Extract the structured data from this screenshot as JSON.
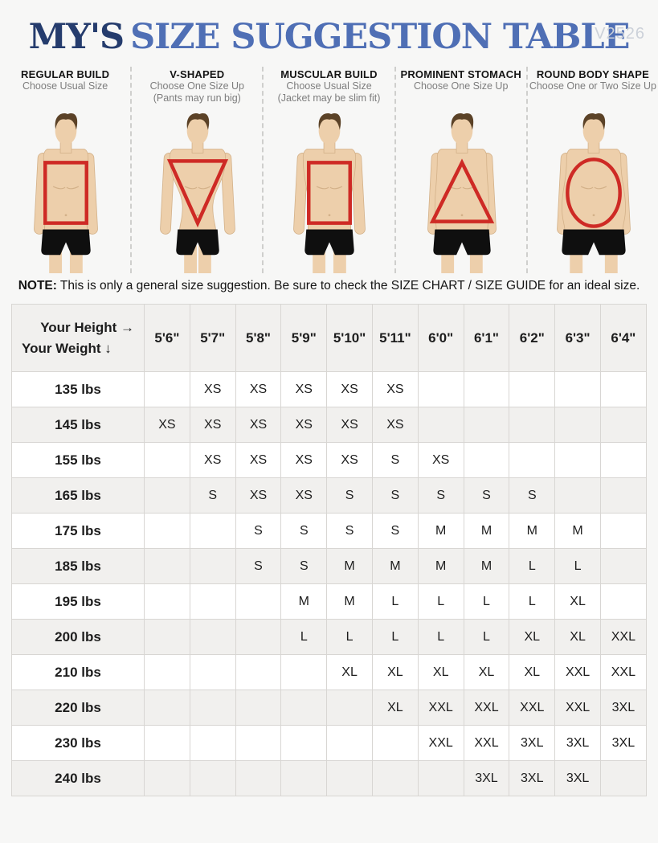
{
  "watermark": "V2526",
  "title": {
    "brand": "MY'S",
    "rest": "SIZE SUGGESTION TABLE"
  },
  "body_types": [
    {
      "name": "REGULAR BUILD",
      "advice": "Choose Usual Size",
      "note": "",
      "build": "regular",
      "shape": "rectangle"
    },
    {
      "name": "V-SHAPED",
      "advice": "Choose One Size Up",
      "note": "(Pants may run big)",
      "build": "v",
      "shape": "triangle-down"
    },
    {
      "name": "MUSCULAR BUILD",
      "advice": "Choose Usual Size",
      "note": "(Jacket may be slim fit)",
      "build": "muscular",
      "shape": "rectangle"
    },
    {
      "name": "PROMINENT STOMACH",
      "advice": "Choose One Size Up",
      "note": "",
      "build": "stomach",
      "shape": "triangle-up"
    },
    {
      "name": "ROUND BODY SHAPE",
      "advice": "Choose One or Two Size Up",
      "note": "",
      "build": "round",
      "shape": "oval"
    }
  ],
  "note": {
    "label": "NOTE:",
    "text": "This is only a general size suggestion. Be sure to check the SIZE CHART / SIZE GUIDE for an ideal size."
  },
  "colors": {
    "accent_red": "#ce2a25",
    "brand_navy": "#253c6d",
    "brand_blue": "#4f6fb5",
    "row_alt_gray": "#f1f0ee"
  },
  "chart_data": {
    "type": "table",
    "title": "MY'S SIZE SUGGESTION TABLE",
    "corner": {
      "line1": "Your Height →",
      "line2": "Your Weight ↓"
    },
    "heights": [
      "5'6\"",
      "5'7\"",
      "5'8\"",
      "5'9\"",
      "5'10\"",
      "5'11\"",
      "6'0\"",
      "6'1\"",
      "6'2\"",
      "6'3\"",
      "6'4\""
    ],
    "rows": [
      {
        "weight": "135 lbs",
        "sizes": [
          "",
          "XS",
          "XS",
          "XS",
          "XS",
          "XS",
          "",
          "",
          "",
          "",
          ""
        ]
      },
      {
        "weight": "145 lbs",
        "sizes": [
          "XS",
          "XS",
          "XS",
          "XS",
          "XS",
          "XS",
          "",
          "",
          "",
          "",
          ""
        ]
      },
      {
        "weight": "155 lbs",
        "sizes": [
          "",
          "XS",
          "XS",
          "XS",
          "XS",
          "S",
          "XS",
          "",
          "",
          "",
          ""
        ]
      },
      {
        "weight": "165 lbs",
        "sizes": [
          "",
          "S",
          "XS",
          "XS",
          "S",
          "S",
          "S",
          "S",
          "S",
          "",
          ""
        ]
      },
      {
        "weight": "175 lbs",
        "sizes": [
          "",
          "",
          "S",
          "S",
          "S",
          "S",
          "M",
          "M",
          "M",
          "M",
          ""
        ]
      },
      {
        "weight": "185 lbs",
        "sizes": [
          "",
          "",
          "S",
          "S",
          "M",
          "M",
          "M",
          "M",
          "L",
          "L",
          ""
        ]
      },
      {
        "weight": "195 lbs",
        "sizes": [
          "",
          "",
          "",
          "M",
          "M",
          "L",
          "L",
          "L",
          "L",
          "XL",
          ""
        ]
      },
      {
        "weight": "200 lbs",
        "sizes": [
          "",
          "",
          "",
          "L",
          "L",
          "L",
          "L",
          "L",
          "XL",
          "XL",
          "XXL"
        ]
      },
      {
        "weight": "210 lbs",
        "sizes": [
          "",
          "",
          "",
          "",
          "XL",
          "XL",
          "XL",
          "XL",
          "XL",
          "XXL",
          "XXL"
        ]
      },
      {
        "weight": "220 lbs",
        "sizes": [
          "",
          "",
          "",
          "",
          "",
          "XL",
          "XXL",
          "XXL",
          "XXL",
          "XXL",
          "3XL"
        ]
      },
      {
        "weight": "230 lbs",
        "sizes": [
          "",
          "",
          "",
          "",
          "",
          "",
          "XXL",
          "XXL",
          "3XL",
          "3XL",
          "3XL"
        ]
      },
      {
        "weight": "240 lbs",
        "sizes": [
          "",
          "",
          "",
          "",
          "",
          "",
          "",
          "3XL",
          "3XL",
          "3XL",
          ""
        ]
      }
    ]
  }
}
